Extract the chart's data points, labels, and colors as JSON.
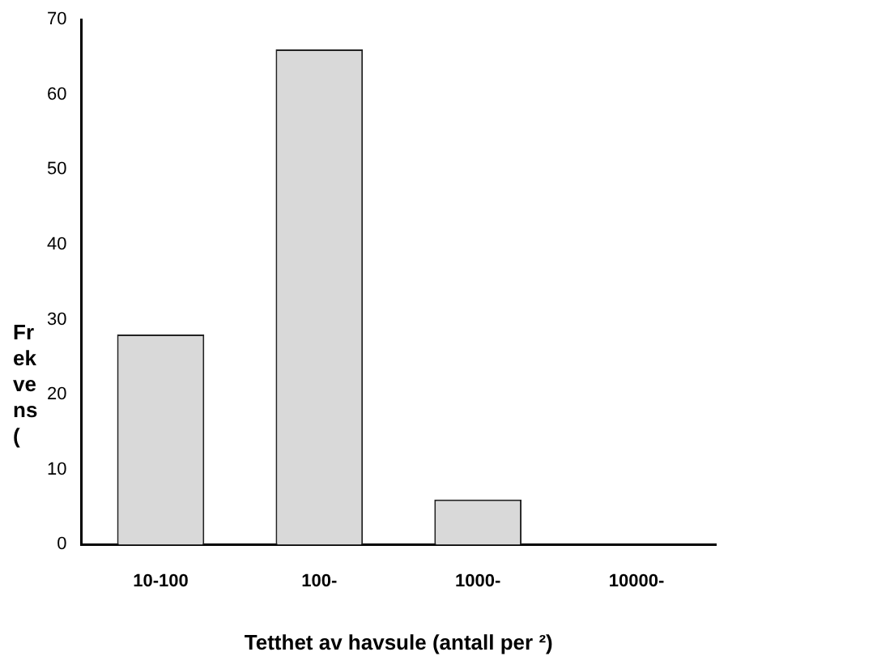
{
  "chart_data": {
    "type": "bar",
    "xlabel": "Tetthet av havsule (antall per ²)",
    "ylabel": "Frekvens (",
    "categories": [
      "10-100",
      "100-",
      "1000-",
      "10000-"
    ],
    "values": [
      28,
      66,
      6,
      0
    ],
    "color": "#d9d9d9",
    "ylim": [
      0,
      70
    ],
    "yticks": [
      0,
      10,
      20,
      30,
      40,
      50,
      60,
      70
    ],
    "grid": false,
    "legend": false
  }
}
